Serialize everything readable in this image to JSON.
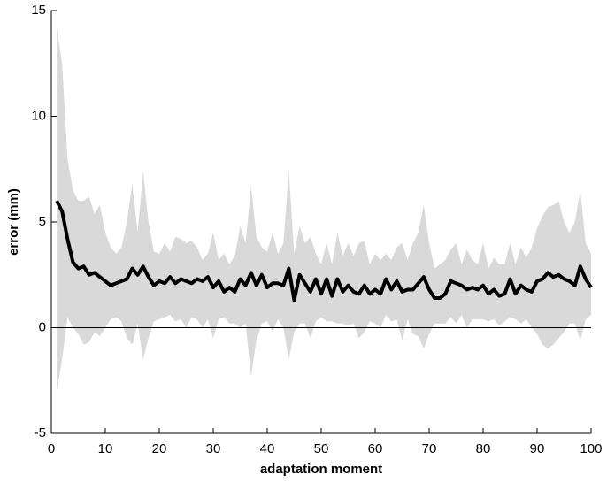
{
  "chart_data": {
    "type": "band-line",
    "x_label": "adaptation moment",
    "y_label": "error (mm)",
    "x": [
      1,
      2,
      3,
      4,
      5,
      6,
      7,
      8,
      9,
      10,
      11,
      12,
      13,
      14,
      15,
      16,
      17,
      18,
      19,
      20,
      21,
      22,
      23,
      24,
      25,
      26,
      27,
      28,
      29,
      30,
      31,
      32,
      33,
      34,
      35,
      36,
      37,
      38,
      39,
      40,
      41,
      42,
      43,
      44,
      45,
      46,
      47,
      48,
      49,
      50,
      51,
      52,
      53,
      54,
      55,
      56,
      57,
      58,
      59,
      60,
      61,
      62,
      63,
      64,
      65,
      66,
      67,
      68,
      69,
      70,
      71,
      72,
      73,
      74,
      75,
      76,
      77,
      78,
      79,
      80,
      81,
      82,
      83,
      84,
      85,
      86,
      87,
      88,
      89,
      90,
      91,
      92,
      93,
      94,
      95,
      96,
      97,
      98,
      99,
      100
    ],
    "values": [
      6.0,
      5.5,
      4.2,
      3.1,
      2.8,
      2.9,
      2.5,
      2.6,
      2.4,
      2.2,
      2.0,
      2.1,
      2.2,
      2.3,
      2.8,
      2.5,
      2.9,
      2.4,
      2.0,
      2.2,
      2.1,
      2.4,
      2.1,
      2.3,
      2.2,
      2.1,
      2.3,
      2.2,
      2.4,
      1.9,
      2.2,
      1.7,
      1.9,
      1.7,
      2.3,
      2.0,
      2.6,
      2.0,
      2.5,
      1.9,
      2.1,
      2.1,
      2.0,
      2.8,
      1.3,
      2.5,
      2.1,
      1.7,
      2.3,
      1.6,
      2.3,
      1.5,
      2.3,
      1.7,
      2.0,
      1.7,
      1.6,
      2.0,
      1.6,
      1.8,
      1.6,
      2.3,
      1.8,
      2.2,
      1.7,
      1.8,
      1.8,
      2.1,
      2.4,
      1.8,
      1.4,
      1.4,
      1.6,
      2.2,
      2.1,
      2.0,
      1.8,
      1.9,
      1.8,
      2.0,
      1.6,
      1.8,
      1.5,
      1.6,
      2.3,
      1.6,
      2.0,
      1.8,
      1.7,
      2.2,
      2.3,
      2.6,
      2.4,
      2.5,
      2.3,
      2.2,
      2.0,
      2.9,
      2.3,
      1.9
    ],
    "band_upper": [
      14.2,
      12.5,
      8,
      6.5,
      6.0,
      6.0,
      6.2,
      5.4,
      5.8,
      4.5,
      3.8,
      3.5,
      3.8,
      5.0,
      6.8,
      4.5,
      7.4,
      5.0,
      3.6,
      3.5,
      4.0,
      3.6,
      4.3,
      4.2,
      4.0,
      4.1,
      3.8,
      3.2,
      3.5,
      4.5,
      3.2,
      3.5,
      3.0,
      3.4,
      4.8,
      4.0,
      6.7,
      4.3,
      3.8,
      3.6,
      4.5,
      3.5,
      4.0,
      7.4,
      3.5,
      4.8,
      4.0,
      4.3,
      3.5,
      3.0,
      4.0,
      3.0,
      4.5,
      3.4,
      4.0,
      3.4,
      4.0,
      4.1,
      3.0,
      3.5,
      3.2,
      3.5,
      3.2,
      3.8,
      4.0,
      3.2,
      4.0,
      4.5,
      5.8,
      4.0,
      2.8,
      3.0,
      3.2,
      3.7,
      4.0,
      3.0,
      3.7,
      3.2,
      3.0,
      4.0,
      2.8,
      3.3,
      3.0,
      3.0,
      4.0,
      3.0,
      3.8,
      3.3,
      3.8,
      4.7,
      5.3,
      5.7,
      5.8,
      6.0,
      5.0,
      4.5,
      5.0,
      6.5,
      4.0,
      3.5
    ],
    "band_lower": [
      -3.0,
      -1.5,
      0.5,
      0,
      -0.3,
      -0.8,
      -0.7,
      -0.2,
      -0.4,
      0,
      0.4,
      0.5,
      0.3,
      -0.5,
      -0.8,
      0.2,
      -1.5,
      -0.5,
      0.3,
      0.4,
      0.5,
      0.6,
      0.3,
      0.4,
      0,
      0.5,
      0.4,
      0,
      0.4,
      -0.5,
      0.4,
      0.5,
      0.2,
      0.2,
      0,
      0.2,
      -2.3,
      -0.6,
      0.2,
      0.3,
      -0.2,
      0.4,
      0,
      -1.5,
      -0.2,
      0.2,
      0.2,
      -0.5,
      0.3,
      0.5,
      0.3,
      0.3,
      0.2,
      0.2,
      0.1,
      0.2,
      -0.5,
      -0.2,
      0.3,
      0.2,
      0,
      0.6,
      0.3,
      0.4,
      -0.6,
      0.4,
      -0.3,
      -0.4,
      -1.0,
      -0.3,
      0.2,
      0.2,
      0.2,
      0.5,
      0.2,
      0.6,
      0,
      0.4,
      0.4,
      0.4,
      0.3,
      0.4,
      0.1,
      0.3,
      0.5,
      0.4,
      0.2,
      0.4,
      0,
      -0.3,
      -0.8,
      -1.0,
      -0.8,
      -0.5,
      -0.2,
      0.2,
      0.2,
      -0.6,
      0.4,
      0.6
    ],
    "color": "#000000",
    "band_color": "#d9d9d9",
    "xlim": [
      0,
      100
    ],
    "xticks": [
      0,
      10,
      20,
      30,
      40,
      50,
      60,
      70,
      80,
      90,
      100
    ],
    "ylim": [
      -5,
      15
    ],
    "yticks": [
      -5,
      0,
      5,
      10,
      15
    ]
  }
}
